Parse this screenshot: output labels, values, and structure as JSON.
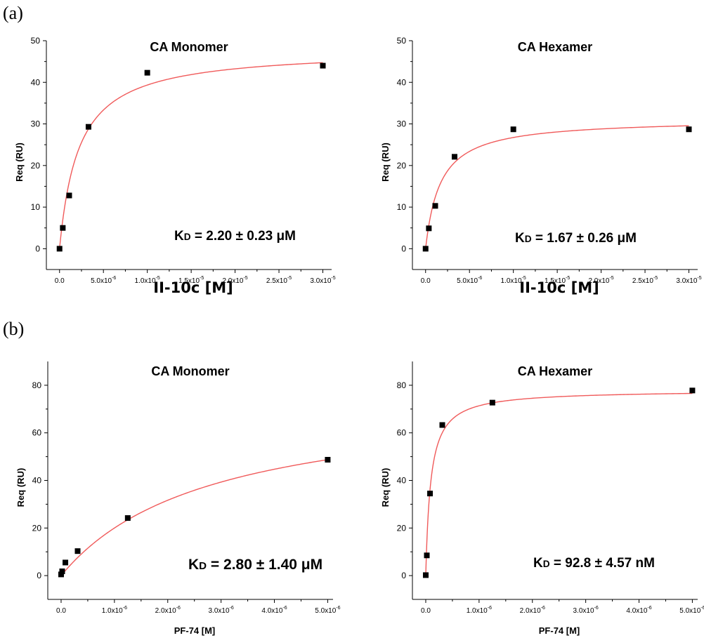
{
  "panels": [
    {
      "label": "(a)"
    },
    {
      "label": "(b)"
    }
  ],
  "chart_data": [
    {
      "type": "scatter",
      "panel": "(a)",
      "title": "CA Monomer",
      "xlabel": "II-10c [M]",
      "ylabel": "Req (RU)",
      "annotation": "KD = 2.20 ± 0.23 μM",
      "xlim": [
        -1.5e-06,
        3.1e-05
      ],
      "ylim": [
        -5,
        50
      ],
      "xticks": [
        0,
        5e-06,
        1e-05,
        1.5e-05,
        2e-05,
        2.5e-05,
        3e-05
      ],
      "xtick_labels": [
        "0.0",
        "5.0x10",
        "1.0x10",
        "1.5x10",
        "2.0x10",
        "2.5x10",
        "3.0x10"
      ],
      "xtick_exps": [
        "",
        "-6",
        "-5",
        "-5",
        "-5",
        "-5",
        "-5"
      ],
      "yticks": [
        0,
        10,
        20,
        30,
        40,
        50
      ],
      "x": [
        0,
        3.7e-07,
        1.1e-06,
        3.3e-06,
        1e-05,
        3e-05
      ],
      "y": [
        0,
        5,
        12.8,
        29.3,
        42.3,
        44
      ],
      "fit": {
        "model": "one-site",
        "Rmax": 48,
        "KD": 2.2e-06
      },
      "point_color": "#000000",
      "fit_color": "#f05a5a"
    },
    {
      "type": "scatter",
      "panel": "(a)",
      "title": "CA Hexamer",
      "xlabel": "II-10c [M]",
      "ylabel": "Req (RU)",
      "annotation": "KD = 1.67 ± 0.26 μM",
      "xlim": [
        -1.5e-06,
        3.1e-05
      ],
      "ylim": [
        -5,
        50
      ],
      "xticks": [
        0,
        5e-06,
        1e-05,
        1.5e-05,
        2e-05,
        2.5e-05,
        3e-05
      ],
      "xtick_labels": [
        "0.0",
        "5.0x10",
        "1.0x10",
        "1.5x10",
        "2.0x10",
        "2.5x10",
        "3.0x10"
      ],
      "xtick_exps": [
        "",
        "-6",
        "-5",
        "-5",
        "-5",
        "-5",
        "-5"
      ],
      "yticks": [
        0,
        10,
        20,
        30,
        40,
        50
      ],
      "x": [
        0,
        3.7e-07,
        1.1e-06,
        3.3e-06,
        1e-05,
        3e-05
      ],
      "y": [
        0,
        4.9,
        10.3,
        22.1,
        28.7,
        28.7
      ],
      "fit": {
        "model": "one-site",
        "Rmax": 31.2,
        "KD": 1.67e-06
      },
      "point_color": "#000000",
      "fit_color": "#f05a5a"
    },
    {
      "type": "scatter",
      "panel": "(b)",
      "title": "CA Monomer",
      "xlabel": "PF-74 [M]",
      "ylabel": "Req (RU)",
      "annotation": "KD = 2.80 ± 1.40 μM",
      "xlim": [
        -2.5e-07,
        5.1e-06
      ],
      "ylim": [
        -10,
        90
      ],
      "xticks": [
        0,
        1e-06,
        2e-06,
        3e-06,
        4e-06,
        5e-06
      ],
      "xtick_labels": [
        "0.0",
        "1.0x10",
        "2.0x10",
        "3.0x10",
        "4.0x10",
        "5.0x10"
      ],
      "xtick_exps": [
        "",
        "-6",
        "-6",
        "-6",
        "-6",
        "-6"
      ],
      "yticks": [
        0,
        20,
        40,
        60,
        80
      ],
      "x": [
        0,
        2e-08,
        8e-08,
        3.1e-07,
        1.25e-06,
        5e-06
      ],
      "y": [
        0.5,
        1.8,
        5.5,
        10.3,
        24.2,
        48.7
      ],
      "fit": {
        "model": "one-site",
        "Rmax": 76,
        "KD": 2.8e-06
      },
      "point_color": "#000000",
      "fit_color": "#f05a5a"
    },
    {
      "type": "scatter",
      "panel": "(b)",
      "title": "CA Hexamer",
      "xlabel": "PF-74 [M]",
      "ylabel": "Req (RU)",
      "annotation": "KD = 92.8 ± 4.57 nM",
      "xlim": [
        -2.5e-07,
        5.1e-06
      ],
      "ylim": [
        -10,
        90
      ],
      "xticks": [
        0,
        1e-06,
        2e-06,
        3e-06,
        4e-06,
        5e-06
      ],
      "xtick_labels": [
        "0.0",
        "1.0x10",
        "2.0x10",
        "3.0x10",
        "4.0x10",
        "5.0x10"
      ],
      "xtick_exps": [
        "",
        "-6",
        "-6",
        "-6",
        "-6",
        "-6"
      ],
      "yticks": [
        0,
        20,
        40,
        60,
        80
      ],
      "x": [
        0,
        2e-08,
        8e-08,
        3.1e-07,
        1.25e-06,
        5e-06
      ],
      "y": [
        0.2,
        8.5,
        34.5,
        63.3,
        72.7,
        77.8
      ],
      "fit": {
        "model": "one-site",
        "Rmax": 78,
        "KD": 9.28e-08
      },
      "point_color": "#000000",
      "fit_color": "#f05a5a"
    }
  ]
}
